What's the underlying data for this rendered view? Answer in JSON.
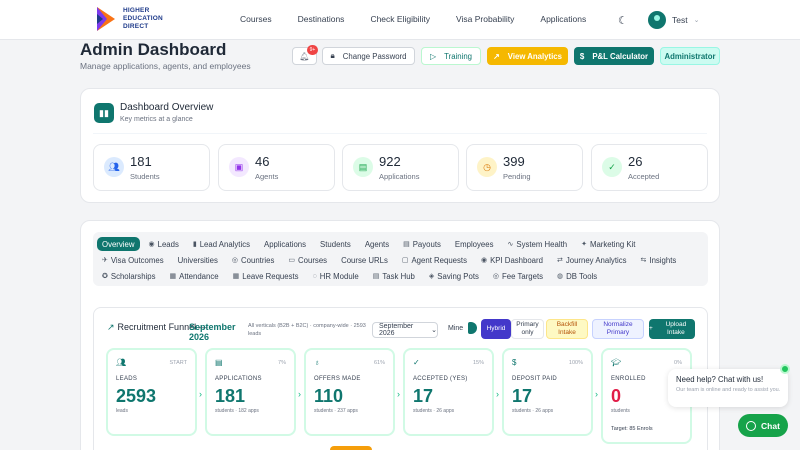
{
  "nav": {
    "brand": [
      "HIGHER",
      "EDUCATION",
      "DIRECT"
    ],
    "links": [
      "Courses",
      "Destinations",
      "Check Eligibility",
      "Visa Probability",
      "Applications"
    ],
    "user_name": "Test"
  },
  "header": {
    "title": "Admin Dashboard",
    "subtitle": "Manage applications, agents, and employees",
    "notification_count": "9+",
    "buttons": {
      "change_password": "Change Password",
      "training": "Training",
      "view_analytics": "View Analytics",
      "pl_calculator": "P&L Calculator",
      "role": "Administrator"
    }
  },
  "overview": {
    "title": "Dashboard Overview",
    "subtitle": "Key metrics at a glance",
    "metrics": [
      {
        "value": "181",
        "label": "Students",
        "icon": "users-icon",
        "color": "#dbeafe",
        "fg": "#2563eb"
      },
      {
        "value": "46",
        "label": "Agents",
        "icon": "briefcase-icon",
        "color": "#f3e8ff",
        "fg": "#9333ea"
      },
      {
        "value": "922",
        "label": "Applications",
        "icon": "document-icon",
        "color": "#dcfce7",
        "fg": "#16a34a"
      },
      {
        "value": "399",
        "label": "Pending",
        "icon": "clock-icon",
        "color": "#fef3c7",
        "fg": "#d97706"
      },
      {
        "value": "26",
        "label": "Accepted",
        "icon": "check-circle-icon",
        "color": "#dcfce7",
        "fg": "#16a34a"
      }
    ]
  },
  "tabs": {
    "rows": [
      [
        "Overview",
        "Leads",
        "Lead Analytics",
        "Applications",
        "Students",
        "Agents",
        "Payouts",
        "Employees",
        "System Health",
        "Marketing Kit"
      ],
      [
        "Visa Outcomes",
        "Universities",
        "Countries",
        "Courses",
        "Course URLs",
        "Agent Requests",
        "KPI Dashboard",
        "Journey Analytics",
        "Insights"
      ],
      [
        "Scholarships",
        "Attendance",
        "Leave Requests",
        "HR Module",
        "Task Hub",
        "Saving Pots",
        "Fee Targets",
        "DB Tools"
      ]
    ],
    "active": "Overview"
  },
  "funnel": {
    "title": "Recruitment Funnel —",
    "month": "September 2026",
    "description": "All verticals (B2B + B2C) · company-wide · 2593 leads",
    "select_value": "September 2026",
    "mine_label": "Mine",
    "buttons": {
      "hybrid": "Hybrid",
      "primary_only": "Primary only",
      "backfill": "Backfill Intake",
      "normalize": "Normalize Primary",
      "upload": "Upload Intake"
    },
    "stages": [
      {
        "label": "LEADS",
        "value": "2593",
        "pct": "START",
        "sub": "leads",
        "icon": "users-icon"
      },
      {
        "label": "APPLICATIONS",
        "value": "181",
        "pct": "7%",
        "sub": "students · 182 apps",
        "icon": "document-icon"
      },
      {
        "label": "OFFERS MADE",
        "value": "110",
        "pct": "61%",
        "sub": "students · 237 apps",
        "icon": "award-icon"
      },
      {
        "label": "ACCEPTED (YES)",
        "value": "17",
        "pct": "15%",
        "sub": "students · 26 apps",
        "icon": "check-circle-icon"
      },
      {
        "label": "DEPOSIT PAID",
        "value": "17",
        "pct": "100%",
        "sub": "students · 26 apps",
        "icon": "dollar-icon"
      },
      {
        "label": "ENROLLED",
        "value": "0",
        "pct": "0%",
        "sub": "students",
        "icon": "graduation-cap-icon",
        "target": "Target: 85 Enrols"
      }
    ]
  },
  "chat": {
    "title": "Need help? Chat with us!",
    "subtitle": "Our team is online and ready to assist you.",
    "button": "Chat"
  }
}
